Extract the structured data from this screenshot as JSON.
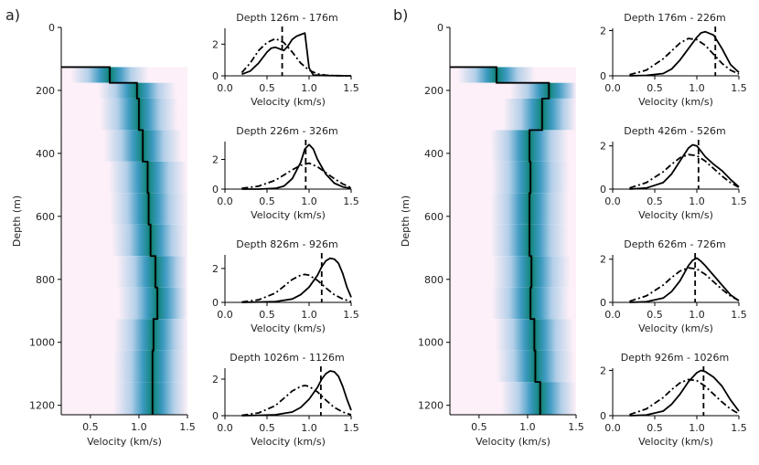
{
  "chart_data": [
    {
      "panel": "a)",
      "type": "heatmap",
      "xlabel": "Velocity (km/s)",
      "ylabel": "Depth (m)",
      "xlim": [
        0.2,
        1.5
      ],
      "ylim": [
        1230,
        0
      ],
      "xticks": [
        "0.5",
        "1.0",
        "1.5"
      ],
      "yticks": [
        "0",
        "200",
        "400",
        "600",
        "800",
        "1000",
        "1200"
      ],
      "profile": {
        "depth": [
          126,
          176,
          226,
          326,
          426,
          526,
          626,
          726,
          826,
          926,
          1026,
          1126,
          1230
        ],
        "velocity": [
          0.7,
          0.98,
          1.0,
          1.04,
          1.09,
          1.1,
          1.12,
          1.17,
          1.19,
          1.15,
          1.14,
          1.14
        ]
      },
      "subplots": [
        {
          "title": "Depth 126m - 176m",
          "xlabel": "Velocity (km/s)",
          "xlim": [
            0,
            1.5
          ],
          "ylim": [
            0,
            3
          ],
          "yticks": [
            "0",
            "2"
          ],
          "xticks": [
            "0.0",
            "0.5",
            "1.0",
            "1.5"
          ],
          "vline": 0.68,
          "series": [
            {
              "style": "solid",
              "x": [
                0.2,
                0.3,
                0.4,
                0.5,
                0.55,
                0.6,
                0.65,
                0.7,
                0.75,
                0.8,
                0.85,
                0.9,
                0.95,
                1.0,
                1.05,
                1.2,
                1.5
              ],
              "y": [
                0.1,
                0.3,
                0.8,
                1.5,
                1.75,
                1.8,
                1.7,
                1.6,
                1.9,
                2.3,
                2.5,
                2.6,
                2.7,
                0.5,
                0.05,
                0.02,
                0.0
              ]
            },
            {
              "style": "dashdot",
              "x": [
                0.2,
                0.3,
                0.4,
                0.5,
                0.6,
                0.7,
                0.8,
                0.9,
                1.0,
                1.1,
                1.2,
                1.3,
                1.5
              ],
              "y": [
                0.2,
                0.8,
                1.6,
                2.1,
                2.35,
                2.1,
                1.5,
                0.8,
                0.35,
                0.12,
                0.04,
                0.01,
                0.0
              ]
            }
          ]
        },
        {
          "title": "Depth 226m - 326m",
          "xlabel": "Velocity (km/s)",
          "xlim": [
            0,
            1.5
          ],
          "ylim": [
            0,
            3.2
          ],
          "yticks": [
            "0",
            "2"
          ],
          "xticks": [
            "0.0",
            "0.5",
            "1.0",
            "1.5"
          ],
          "vline": 0.96,
          "series": [
            {
              "style": "solid",
              "x": [
                0.2,
                0.4,
                0.6,
                0.7,
                0.8,
                0.9,
                0.95,
                1.0,
                1.05,
                1.1,
                1.2,
                1.3,
                1.4,
                1.5
              ],
              "y": [
                0.0,
                0.0,
                0.05,
                0.2,
                0.7,
                1.8,
                2.7,
                3.0,
                2.7,
                2.0,
                1.0,
                0.4,
                0.15,
                0.05
              ]
            },
            {
              "style": "dashdot",
              "x": [
                0.2,
                0.4,
                0.6,
                0.7,
                0.8,
                0.9,
                1.0,
                1.1,
                1.2,
                1.3,
                1.4,
                1.5
              ],
              "y": [
                0.05,
                0.2,
                0.6,
                0.95,
                1.3,
                1.6,
                1.75,
                1.5,
                1.1,
                0.7,
                0.35,
                0.1
              ]
            }
          ]
        },
        {
          "title": "Depth 826m - 926m",
          "xlabel": "Velocity (km/s)",
          "xlim": [
            0,
            1.5
          ],
          "ylim": [
            0,
            2.8
          ],
          "yticks": [
            "0",
            "2"
          ],
          "xticks": [
            "0.0",
            "0.5",
            "1.0",
            "1.5"
          ],
          "vline": 1.15,
          "series": [
            {
              "style": "solid",
              "x": [
                0.2,
                0.4,
                0.6,
                0.8,
                0.9,
                1.0,
                1.1,
                1.15,
                1.2,
                1.25,
                1.3,
                1.35,
                1.4,
                1.45,
                1.5
              ],
              "y": [
                0.0,
                0.02,
                0.05,
                0.2,
                0.45,
                0.9,
                1.6,
                2.1,
                2.45,
                2.6,
                2.55,
                2.3,
                1.7,
                0.9,
                0.3
              ]
            },
            {
              "style": "dashdot",
              "x": [
                0.2,
                0.4,
                0.6,
                0.7,
                0.8,
                0.9,
                0.95,
                1.0,
                1.1,
                1.2,
                1.3,
                1.4,
                1.5
              ],
              "y": [
                0.02,
                0.15,
                0.55,
                0.95,
                1.35,
                1.6,
                1.65,
                1.6,
                1.3,
                0.85,
                0.45,
                0.2,
                0.05
              ]
            }
          ]
        },
        {
          "title": "Depth 1026m - 1126m",
          "xlabel": "Velocity (km/s)",
          "xlim": [
            0,
            1.5
          ],
          "ylim": [
            0,
            2.6
          ],
          "yticks": [
            "0",
            "2"
          ],
          "xticks": [
            "0.0",
            "0.5",
            "1.0",
            "1.5"
          ],
          "vline": 1.14,
          "series": [
            {
              "style": "solid",
              "x": [
                0.2,
                0.4,
                0.6,
                0.8,
                0.9,
                1.0,
                1.1,
                1.15,
                1.2,
                1.25,
                1.3,
                1.35,
                1.4,
                1.45,
                1.5
              ],
              "y": [
                0.0,
                0.02,
                0.05,
                0.2,
                0.45,
                0.9,
                1.55,
                2.0,
                2.3,
                2.45,
                2.4,
                2.15,
                1.6,
                0.9,
                0.3
              ]
            },
            {
              "style": "dashdot",
              "x": [
                0.2,
                0.4,
                0.6,
                0.7,
                0.8,
                0.9,
                0.95,
                1.0,
                1.1,
                1.2,
                1.3,
                1.4,
                1.5
              ],
              "y": [
                0.02,
                0.15,
                0.55,
                0.95,
                1.35,
                1.6,
                1.65,
                1.6,
                1.3,
                0.85,
                0.45,
                0.2,
                0.05
              ]
            }
          ]
        }
      ]
    },
    {
      "panel": "b)",
      "type": "heatmap",
      "xlabel": "Velocity (km/s)",
      "ylabel": "Depth (m)",
      "xlim": [
        0.2,
        1.5
      ],
      "ylim": [
        1230,
        0
      ],
      "xticks": [
        "0.5",
        "1.0",
        "1.5"
      ],
      "yticks": [
        "0",
        "200",
        "400",
        "600",
        "800",
        "1000",
        "1200"
      ],
      "profile": {
        "depth": [
          126,
          176,
          226,
          326,
          426,
          526,
          626,
          726,
          826,
          926,
          1026,
          1126,
          1230
        ],
        "velocity": [
          0.68,
          1.22,
          1.15,
          1.02,
          1.03,
          1.02,
          1.02,
          1.04,
          1.03,
          1.07,
          1.08,
          1.13
        ]
      },
      "subplots": [
        {
          "title": "Depth 176m - 226m",
          "xlabel": "Velocity (km/s)",
          "xlim": [
            0,
            1.5
          ],
          "ylim": [
            0,
            2.1
          ],
          "yticks": [
            "0",
            "2"
          ],
          "xticks": [
            "0.0",
            "0.5",
            "1.0",
            "1.5"
          ],
          "vline": 1.22,
          "series": [
            {
              "style": "solid",
              "x": [
                0.2,
                0.4,
                0.6,
                0.7,
                0.8,
                0.9,
                1.0,
                1.05,
                1.1,
                1.2,
                1.3,
                1.4,
                1.5
              ],
              "y": [
                0.0,
                0.02,
                0.1,
                0.3,
                0.7,
                1.2,
                1.7,
                1.9,
                1.95,
                1.8,
                1.2,
                0.5,
                0.15
              ]
            },
            {
              "style": "dashdot",
              "x": [
                0.2,
                0.4,
                0.6,
                0.7,
                0.8,
                0.9,
                1.0,
                1.1,
                1.2,
                1.3,
                1.4,
                1.5
              ],
              "y": [
                0.05,
                0.25,
                0.75,
                1.1,
                1.45,
                1.65,
                1.6,
                1.35,
                0.95,
                0.55,
                0.25,
                0.08
              ]
            }
          ]
        },
        {
          "title": "Depth 426m - 526m",
          "xlabel": "Velocity (km/s)",
          "xlim": [
            0,
            1.5
          ],
          "ylim": [
            0,
            2.2
          ],
          "yticks": [
            "0",
            "2"
          ],
          "xticks": [
            "0.0",
            "0.5",
            "1.0",
            "1.5"
          ],
          "vline": 1.02,
          "series": [
            {
              "style": "solid",
              "x": [
                0.2,
                0.4,
                0.6,
                0.7,
                0.8,
                0.9,
                0.95,
                1.0,
                1.05,
                1.1,
                1.2,
                1.3,
                1.4,
                1.5
              ],
              "y": [
                0.0,
                0.05,
                0.3,
                0.7,
                1.3,
                1.9,
                2.05,
                2.0,
                1.75,
                1.5,
                1.15,
                0.85,
                0.45,
                0.1
              ]
            },
            {
              "style": "dashdot",
              "x": [
                0.2,
                0.4,
                0.6,
                0.7,
                0.8,
                0.9,
                1.0,
                1.1,
                1.2,
                1.3,
                1.4,
                1.5
              ],
              "y": [
                0.05,
                0.3,
                0.8,
                1.15,
                1.45,
                1.6,
                1.55,
                1.3,
                0.95,
                0.6,
                0.3,
                0.08
              ]
            }
          ]
        },
        {
          "title": "Depth 626m - 726m",
          "xlabel": "Velocity (km/s)",
          "xlim": [
            0,
            1.5
          ],
          "ylim": [
            0,
            2.2
          ],
          "yticks": [
            "0",
            "2"
          ],
          "xticks": [
            "0.0",
            "0.5",
            "1.0",
            "1.5"
          ],
          "vline": 0.98,
          "series": [
            {
              "style": "solid",
              "x": [
                0.2,
                0.4,
                0.6,
                0.7,
                0.8,
                0.9,
                0.95,
                1.0,
                1.05,
                1.1,
                1.2,
                1.3,
                1.4,
                1.5
              ],
              "y": [
                0.0,
                0.03,
                0.2,
                0.5,
                1.0,
                1.7,
                1.95,
                2.05,
                1.9,
                1.7,
                1.25,
                0.8,
                0.35,
                0.08
              ]
            },
            {
              "style": "dashdot",
              "x": [
                0.2,
                0.4,
                0.6,
                0.7,
                0.8,
                0.9,
                1.0,
                1.1,
                1.2,
                1.3,
                1.4,
                1.5
              ],
              "y": [
                0.05,
                0.3,
                0.8,
                1.15,
                1.45,
                1.6,
                1.55,
                1.3,
                0.95,
                0.6,
                0.3,
                0.08
              ]
            }
          ]
        },
        {
          "title": "Depth 926m - 1026m",
          "xlabel": "Velocity (km/s)",
          "xlim": [
            0,
            1.5
          ],
          "ylim": [
            0,
            2.1
          ],
          "yticks": [
            "0",
            "2"
          ],
          "xticks": [
            "0.0",
            "0.5",
            "1.0",
            "1.5"
          ],
          "vline": 1.08,
          "series": [
            {
              "style": "solid",
              "x": [
                0.2,
                0.4,
                0.6,
                0.7,
                0.8,
                0.9,
                1.0,
                1.05,
                1.1,
                1.2,
                1.3,
                1.4,
                1.5
              ],
              "y": [
                0.0,
                0.03,
                0.2,
                0.5,
                0.95,
                1.5,
                1.9,
                2.0,
                1.95,
                1.7,
                1.3,
                0.7,
                0.2
              ]
            },
            {
              "style": "dashdot",
              "x": [
                0.2,
                0.4,
                0.6,
                0.7,
                0.8,
                0.9,
                1.0,
                1.1,
                1.2,
                1.3,
                1.4,
                1.5
              ],
              "y": [
                0.05,
                0.3,
                0.8,
                1.15,
                1.45,
                1.6,
                1.55,
                1.3,
                0.95,
                0.6,
                0.3,
                0.08
              ]
            }
          ]
        }
      ]
    }
  ]
}
